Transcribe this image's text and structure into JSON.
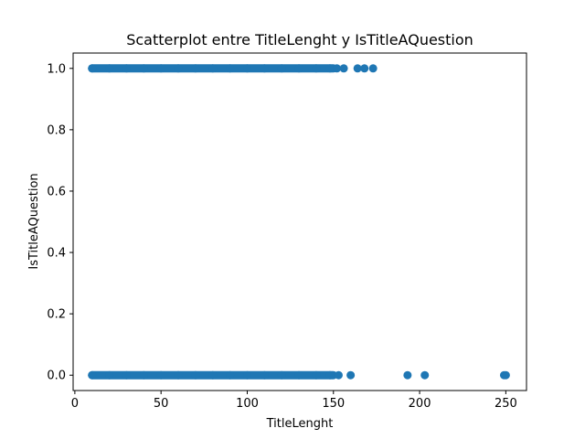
{
  "chart_data": {
    "type": "scatter",
    "title": "Scatterplot entre TitleLenght y IsTitleAQuestion",
    "xlabel": "TitleLenght",
    "ylabel": "IsTitleAQuestion",
    "xlim": [
      -1,
      262
    ],
    "ylim": [
      -0.05,
      1.05
    ],
    "xticks": [
      0,
      50,
      100,
      150,
      200,
      250
    ],
    "yticks": [
      0.0,
      0.2,
      0.4,
      0.6,
      0.8,
      1.0
    ],
    "xtick_labels": [
      "0",
      "50",
      "100",
      "150",
      "200",
      "250"
    ],
    "ytick_labels": [
      "0.0",
      "0.2",
      "0.4",
      "0.6",
      "0.8",
      "1.0"
    ],
    "grid": false,
    "legend": "none",
    "marker_color": "#1f77b4",
    "series": [
      {
        "points": [
          {
            "x": 10,
            "y": 1
          },
          {
            "x": 20,
            "y": 1
          },
          {
            "x": 30,
            "y": 1
          },
          {
            "x": 40,
            "y": 1
          },
          {
            "x": 50,
            "y": 1
          },
          {
            "x": 60,
            "y": 1
          },
          {
            "x": 70,
            "y": 1
          },
          {
            "x": 80,
            "y": 1
          },
          {
            "x": 90,
            "y": 1
          },
          {
            "x": 100,
            "y": 1
          },
          {
            "x": 110,
            "y": 1
          },
          {
            "x": 120,
            "y": 1
          },
          {
            "x": 130,
            "y": 1
          },
          {
            "x": 140,
            "y": 1
          },
          {
            "x": 148,
            "y": 1
          },
          {
            "x": 152,
            "y": 1
          },
          {
            "x": 156,
            "y": 1
          },
          {
            "x": 164,
            "y": 1
          },
          {
            "x": 168,
            "y": 1
          },
          {
            "x": 173,
            "y": 1
          },
          {
            "x": 10,
            "y": 0
          },
          {
            "x": 20,
            "y": 0
          },
          {
            "x": 30,
            "y": 0
          },
          {
            "x": 40,
            "y": 0
          },
          {
            "x": 50,
            "y": 0
          },
          {
            "x": 60,
            "y": 0
          },
          {
            "x": 70,
            "y": 0
          },
          {
            "x": 80,
            "y": 0
          },
          {
            "x": 90,
            "y": 0
          },
          {
            "x": 100,
            "y": 0
          },
          {
            "x": 110,
            "y": 0
          },
          {
            "x": 120,
            "y": 0
          },
          {
            "x": 130,
            "y": 0
          },
          {
            "x": 140,
            "y": 0
          },
          {
            "x": 148,
            "y": 0
          },
          {
            "x": 153,
            "y": 0
          },
          {
            "x": 160,
            "y": 0
          },
          {
            "x": 193,
            "y": 0
          },
          {
            "x": 203,
            "y": 0
          },
          {
            "x": 249,
            "y": 0
          },
          {
            "x": 250,
            "y": 0
          }
        ],
        "dense_runs": [
          {
            "x_from": 10,
            "x_to": 150,
            "y": 1
          },
          {
            "x_from": 10,
            "x_to": 150,
            "y": 0
          }
        ]
      }
    ]
  }
}
